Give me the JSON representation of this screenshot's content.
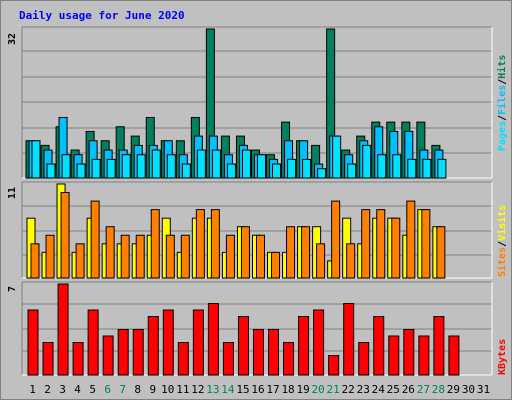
{
  "title": "Daily usage for June 2020",
  "colors": {
    "hits": "#00805c",
    "files": "#00c0ff",
    "pages": "#00e0ff",
    "visits": "#ffff00",
    "sites": "#ff8000",
    "kbytes": "#ff0000",
    "title": "#0000ff",
    "weekend_label": "#00805c",
    "weekday_label": "#000000",
    "panel_bg": "#c0c0c0"
  },
  "chart_data": [
    {
      "type": "bar",
      "panel": "top",
      "ymax_label": "32",
      "legend": [
        "Hits",
        "Files",
        "Pages"
      ],
      "categories": [
        "1",
        "2",
        "3",
        "4",
        "5",
        "6",
        "7",
        "8",
        "9",
        "10",
        "11",
        "12",
        "13",
        "14",
        "15",
        "16",
        "17",
        "18",
        "19",
        "20",
        "21",
        "22",
        "23",
        "24",
        "25",
        "26",
        "27",
        "28",
        "29",
        "30",
        "31"
      ],
      "ylim": [
        0,
        32
      ],
      "series": [
        {
          "name": "Hits",
          "values": [
            8,
            7,
            11,
            6,
            10,
            8,
            11,
            9,
            13,
            8,
            8,
            13,
            32,
            9,
            9,
            6,
            5,
            12,
            8,
            7,
            32,
            6,
            9,
            12,
            12,
            12,
            12,
            7,
            0,
            0,
            0
          ]
        },
        {
          "name": "Files",
          "values": [
            8,
            6,
            13,
            5,
            8,
            6,
            6,
            7,
            7,
            8,
            5,
            9,
            9,
            5,
            7,
            5,
            4,
            8,
            8,
            3,
            9,
            5,
            8,
            11,
            10,
            10,
            6,
            6,
            0,
            0,
            0
          ]
        },
        {
          "name": "Pages",
          "values": [
            8,
            3,
            5,
            3,
            4,
            4,
            5,
            5,
            6,
            5,
            3,
            6,
            6,
            3,
            6,
            5,
            3,
            4,
            4,
            2,
            9,
            3,
            7,
            5,
            5,
            4,
            4,
            4,
            0,
            0,
            0
          ]
        }
      ]
    },
    {
      "type": "bar",
      "panel": "middle",
      "ymax_label": "11",
      "legend": [
        "Sites",
        "Visits"
      ],
      "categories": [
        "1",
        "2",
        "3",
        "4",
        "5",
        "6",
        "7",
        "8",
        "9",
        "10",
        "11",
        "12",
        "13",
        "14",
        "15",
        "16",
        "17",
        "18",
        "19",
        "20",
        "21",
        "22",
        "23",
        "24",
        "25",
        "26",
        "27",
        "28",
        "29",
        "30",
        "31"
      ],
      "ylim": [
        0,
        11
      ],
      "series": [
        {
          "name": "Visits",
          "values": [
            7,
            3,
            11,
            3,
            7,
            4,
            4,
            4,
            5,
            7,
            3,
            7,
            7,
            3,
            6,
            5,
            3,
            3,
            6,
            6,
            2,
            7,
            4,
            7,
            7,
            5,
            8,
            6,
            0,
            0,
            0
          ]
        },
        {
          "name": "Sites",
          "values": [
            4,
            5,
            10,
            4,
            9,
            6,
            5,
            5,
            8,
            5,
            5,
            8,
            8,
            5,
            6,
            5,
            3,
            6,
            6,
            4,
            9,
            4,
            8,
            8,
            7,
            9,
            8,
            6,
            0,
            0,
            0
          ]
        }
      ]
    },
    {
      "type": "bar",
      "panel": "bottom",
      "ymax_label": "7",
      "legend": [
        "KBytes"
      ],
      "categories": [
        "1",
        "2",
        "3",
        "4",
        "5",
        "6",
        "7",
        "8",
        "9",
        "10",
        "11",
        "12",
        "13",
        "14",
        "15",
        "16",
        "17",
        "18",
        "19",
        "20",
        "21",
        "22",
        "23",
        "24",
        "25",
        "26",
        "27",
        "28",
        "29",
        "30",
        "31"
      ],
      "ylim": [
        0,
        7
      ],
      "series": [
        {
          "name": "KBytes",
          "values": [
            5,
            2.5,
            7,
            2.5,
            5,
            3,
            3.5,
            3.5,
            4.5,
            5,
            2.5,
            5,
            5.5,
            2.5,
            4.5,
            3.5,
            3.5,
            2.5,
            4.5,
            5,
            1.5,
            5.5,
            2.5,
            4.5,
            3,
            3.5,
            3,
            4.5,
            3,
            0,
            0
          ]
        }
      ]
    }
  ],
  "weekend_days": [
    6,
    7,
    13,
    14,
    20,
    21,
    27,
    28
  ]
}
